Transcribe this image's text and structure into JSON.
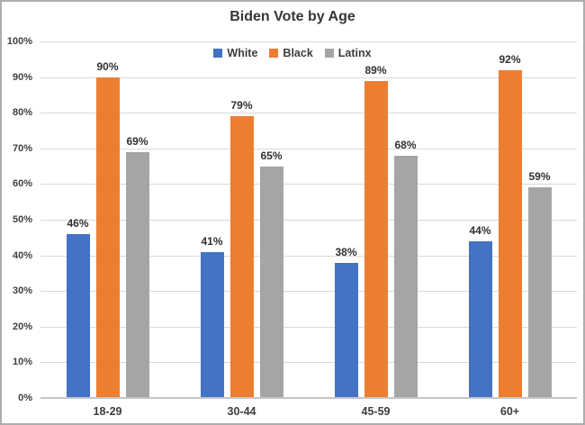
{
  "chart_data": {
    "type": "bar",
    "title": "Biden Vote by Age",
    "categories": [
      "18-29",
      "30-44",
      "45-59",
      "60+"
    ],
    "series": [
      {
        "name": "White",
        "color": "#4472C4",
        "values": [
          46,
          41,
          38,
          44
        ],
        "labels": [
          "46%",
          "41%",
          "38%",
          "44%"
        ]
      },
      {
        "name": "Black",
        "color": "#ED7D31",
        "values": [
          90,
          79,
          89,
          92
        ],
        "labels": [
          "90%",
          "79%",
          "89%",
          "92%"
        ]
      },
      {
        "name": "Latinx",
        "color": "#A5A5A5",
        "values": [
          69,
          65,
          68,
          59
        ],
        "labels": [
          "69%",
          "65%",
          "68%",
          "59%"
        ]
      }
    ],
    "ylim": [
      0,
      100
    ],
    "y_tick_values": [
      0,
      10,
      20,
      30,
      40,
      50,
      60,
      70,
      80,
      90,
      100
    ],
    "y_tick_labels": [
      "0%",
      "10%",
      "20%",
      "30%",
      "40%",
      "50%",
      "60%",
      "70%",
      "80%",
      "90%",
      "100%"
    ],
    "xlabel": "",
    "ylabel": "",
    "grid": true,
    "legend_position": "top-center"
  },
  "style_colors": {
    "gridline": "#D9D9D9",
    "axis_line": "#C6C6C6",
    "frame_border": "#ADADAD",
    "background": "#FFFFFF",
    "title_text": "#363636",
    "label_text": "#303030",
    "axis_text": "#404040"
  }
}
